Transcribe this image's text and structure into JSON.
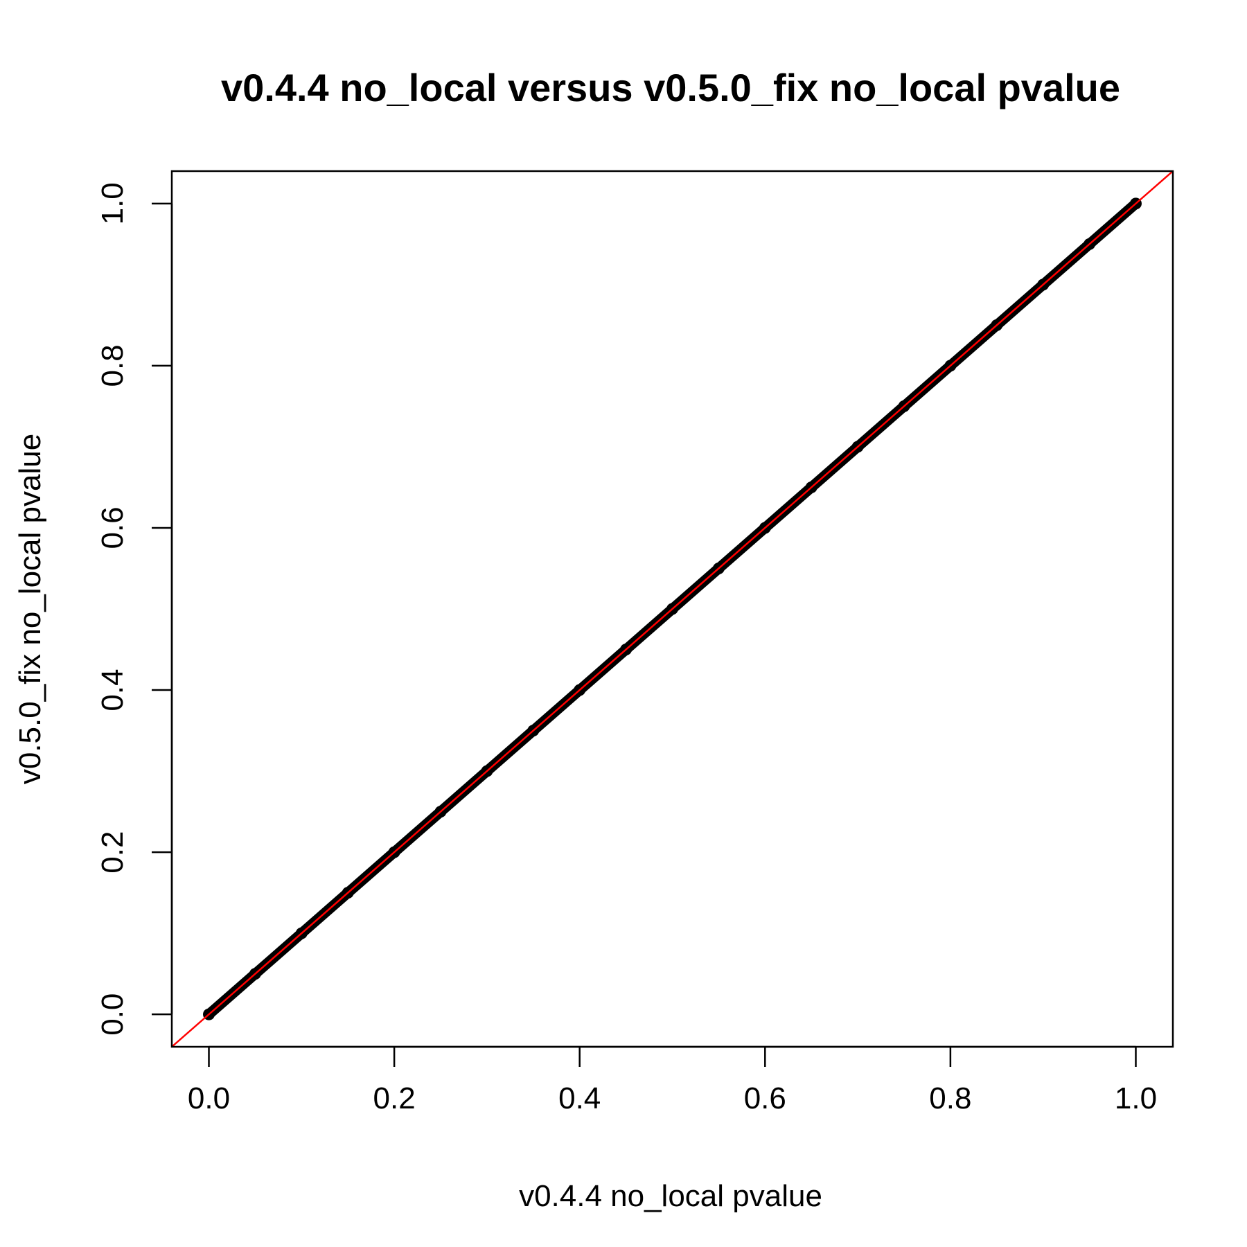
{
  "chart_data": {
    "type": "scatter",
    "title": "v0.4.4 no_local versus v0.5.0_fix no_local pvalue",
    "xlabel": "v0.4.4 no_local pvalue",
    "ylabel": "v0.5.0_fix no_local pvalue",
    "xlim": [
      -0.04,
      1.04
    ],
    "ylim": [
      -0.04,
      1.04
    ],
    "x_ticks": [
      0.0,
      0.2,
      0.4,
      0.6,
      0.8,
      1.0
    ],
    "x_tick_labels": [
      "0.0",
      "0.2",
      "0.4",
      "0.6",
      "0.8",
      "1.0"
    ],
    "y_ticks": [
      0.0,
      0.2,
      0.4,
      0.6,
      0.8,
      1.0
    ],
    "y_tick_labels": [
      "0.0",
      "0.2",
      "0.4",
      "0.6",
      "0.8",
      "1.0"
    ],
    "grid": false,
    "series": [
      {
        "points_x": [
          0.0,
          0.05,
          0.1,
          0.15,
          0.2,
          0.25,
          0.3,
          0.35,
          0.4,
          0.45,
          0.5,
          0.55,
          0.6,
          0.65,
          0.7,
          0.75,
          0.8,
          0.85,
          0.9,
          0.95,
          1.0
        ],
        "points_y": [
          0.0,
          0.05,
          0.1,
          0.15,
          0.2,
          0.25,
          0.3,
          0.35,
          0.4,
          0.45,
          0.5,
          0.55,
          0.6,
          0.65,
          0.7,
          0.75,
          0.8,
          0.85,
          0.9,
          0.95,
          1.0
        ],
        "color": "#000000"
      }
    ],
    "reference_line": {
      "type": "y = x",
      "color": "#ff0000"
    }
  }
}
